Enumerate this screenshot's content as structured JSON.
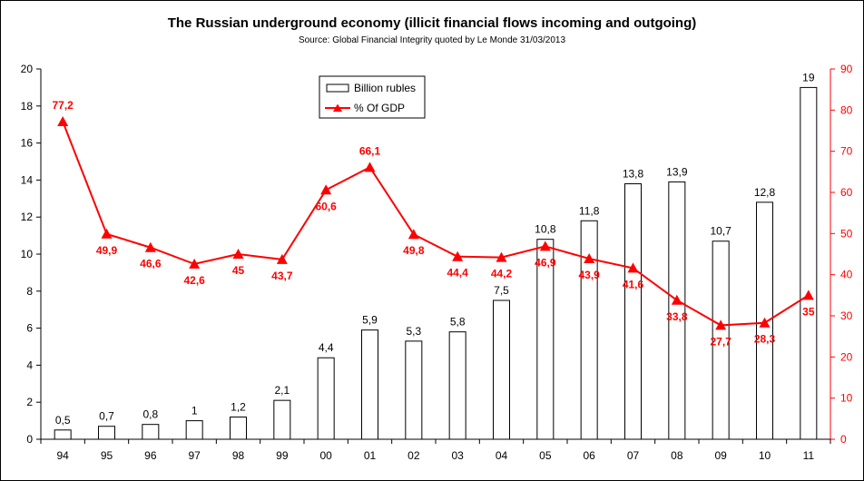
{
  "chart_data": {
    "type": "bar",
    "title": "The Russian underground economy (illicit financial flows incoming and outgoing)",
    "subtitle": "Source: Global Financial Integrity quoted by Le Monde 31/03/2013",
    "categories": [
      "94",
      "95",
      "96",
      "97",
      "98",
      "99",
      "00",
      "01",
      "02",
      "03",
      "04",
      "05",
      "06",
      "07",
      "08",
      "09",
      "10",
      "11"
    ],
    "series": [
      {
        "name": "Billion rubles",
        "type": "bar",
        "axis": "left",
        "values": [
          0.5,
          0.7,
          0.8,
          1,
          1.2,
          2.1,
          4.4,
          5.9,
          5.3,
          5.8,
          7.5,
          10.8,
          11.8,
          13.8,
          13.9,
          10.7,
          12.8,
          19
        ],
        "labels": [
          "0,5",
          "0,7",
          "0,8",
          "1",
          "1,2",
          "2,1",
          "4,4",
          "5,9",
          "5,3",
          "5,8",
          "7,5",
          "10,8",
          "11,8",
          "13,8",
          "13,9",
          "10,7",
          "12,8",
          "19"
        ],
        "color": "#ffffff",
        "stroke": "#000000"
      },
      {
        "name": "% Of GDP",
        "type": "line",
        "axis": "right",
        "values": [
          77.2,
          49.9,
          46.6,
          42.6,
          45,
          43.7,
          60.6,
          66.1,
          49.8,
          44.4,
          44.2,
          46.9,
          43.9,
          41.6,
          33.8,
          27.7,
          28.3,
          35
        ],
        "labels": [
          "77,2",
          "49,9",
          "46,6",
          "42,6",
          "45",
          "43,7",
          "60,6",
          "66,1",
          "49,8",
          "44,4",
          "44,2",
          "46,9",
          "43,9",
          "41,6",
          "33,8",
          "27,7",
          "28,3",
          "35"
        ],
        "color": "#ff0000"
      }
    ],
    "y_left": {
      "ylim": [
        0,
        20
      ],
      "ticks": [
        "0",
        "2",
        "4",
        "6",
        "8",
        "10",
        "12",
        "14",
        "16",
        "18",
        "20"
      ]
    },
    "y_right": {
      "ylim": [
        0,
        90
      ],
      "ticks": [
        "0",
        "10",
        "20",
        "30",
        "40",
        "50",
        "60",
        "70",
        "80",
        "90"
      ],
      "color": "#ff0000"
    },
    "grid": false,
    "legend": "top-center"
  }
}
